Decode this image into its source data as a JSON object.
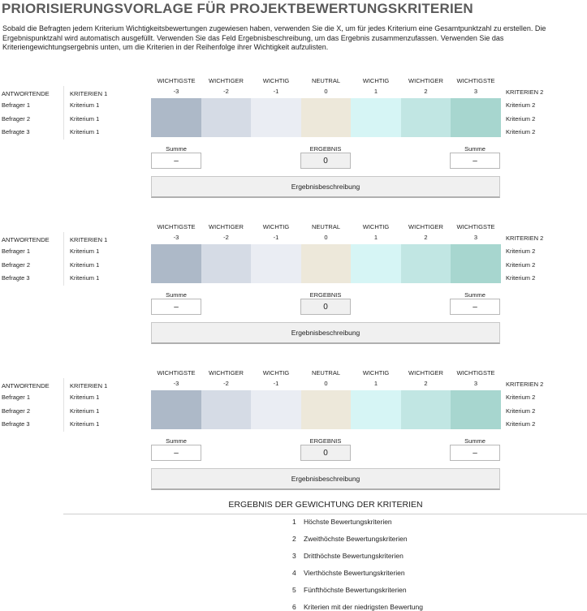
{
  "title": "PRIORISIERUNGSVORLAGE FÜR PROJEKTBEWERTUNGSKRITERIEN",
  "intro": "Sobald die Befragten jedem Kriterium Wichtigkeitsbewertungen zugewiesen haben, verwenden Sie die X, um für jedes Kriterium eine Gesamtpunktzahl zu erstellen.  Die Ergebnispunktzahl wird automatisch ausgefüllt.  Verwenden Sie das Feld Ergebnisbeschreibung, um das Ergebnis zusammenzufassen.  Verwenden Sie das Kriteriengewichtungsergebnis unten, um die Kriterien in der Reihenfolge ihrer Wichtigkeit aufzulisten.",
  "scale_headers": [
    "WICHTIGSTE",
    "WICHTIGER",
    "WICHTIG",
    "NEUTRAL",
    "WICHTIG",
    "WICHTIGER",
    "WICHTIGSTE"
  ],
  "scale_values": [
    "-3",
    "-2",
    "-1",
    "0",
    "1",
    "2",
    "3"
  ],
  "scale_colors": [
    "#adb9c8",
    "#d5dbe5",
    "#eaedf3",
    "#ede8da",
    "#d6f5f5",
    "#c1e6e3",
    "#a7d6cf"
  ],
  "blocks": [
    {
      "col_respondents": "ANTWORTENDE",
      "col_criteria1": "KRITERIEN 1",
      "col_criteria2": "KRITERIEN 2",
      "rows": [
        {
          "respondent": "Befrager 1",
          "criteria1": "Kriterium 1",
          "criteria2": "Kriterium 2"
        },
        {
          "respondent": "Befrager 2",
          "criteria1": "Kriterium 1",
          "criteria2": "Kriterium 2"
        },
        {
          "respondent": "Befragte 3",
          "criteria1": "Kriterium 1",
          "criteria2": "Kriterium 2"
        }
      ],
      "sum_left_label": "Summe",
      "sum_left_value": "–",
      "result_label": "ERGEBNIS",
      "result_value": "0",
      "sum_right_label": "Summe",
      "sum_right_value": "–",
      "description": "Ergebnisbeschreibung"
    },
    {
      "col_respondents": "ANTWORTENDE",
      "col_criteria1": "KRITERIEN 1",
      "col_criteria2": "KRITERIEN 2",
      "rows": [
        {
          "respondent": "Befrager 1",
          "criteria1": "Kriterium 1",
          "criteria2": "Kriterium 2"
        },
        {
          "respondent": "Befrager 2",
          "criteria1": "Kriterium 1",
          "criteria2": "Kriterium 2"
        },
        {
          "respondent": "Befragte 3",
          "criteria1": "Kriterium 1",
          "criteria2": "Kriterium 2"
        }
      ],
      "sum_left_label": "Summe",
      "sum_left_value": "–",
      "result_label": "ERGEBNIS",
      "result_value": "0",
      "sum_right_label": "Summe",
      "sum_right_value": "–",
      "description": "Ergebnisbeschreibung"
    },
    {
      "col_respondents": "ANTWORTENDE",
      "col_criteria1": "KRITERIEN 1",
      "col_criteria2": "KRITERIEN 2",
      "rows": [
        {
          "respondent": "Befrager 1",
          "criteria1": "Kriterium 1",
          "criteria2": "Kriterium 2"
        },
        {
          "respondent": "Befrager 2",
          "criteria1": "Kriterium 1",
          "criteria2": "Kriterium 2"
        },
        {
          "respondent": "Befragte 3",
          "criteria1": "Kriterium 1",
          "criteria2": "Kriterium 2"
        }
      ],
      "sum_left_label": "Summe",
      "sum_left_value": "–",
      "result_label": "ERGEBNIS",
      "result_value": "0",
      "sum_right_label": "Summe",
      "sum_right_value": "–",
      "description": "Ergebnisbeschreibung"
    }
  ],
  "weighting": {
    "title": "ERGEBNIS DER GEWICHTUNG DER KRITERIEN",
    "items": [
      {
        "n": "1",
        "label": "Höchste Bewertungskriterien"
      },
      {
        "n": "2",
        "label": "Zweithöchste Bewertungskriterien"
      },
      {
        "n": "3",
        "label": "Dritthöchste Bewertungskriterien"
      },
      {
        "n": "4",
        "label": "Vierthöchste Bewertungskriterien"
      },
      {
        "n": "5",
        "label": "Fünfthöchste Bewertungskriterien"
      },
      {
        "n": "6",
        "label": "Kriterien mit der niedrigsten Bewertung"
      }
    ]
  }
}
